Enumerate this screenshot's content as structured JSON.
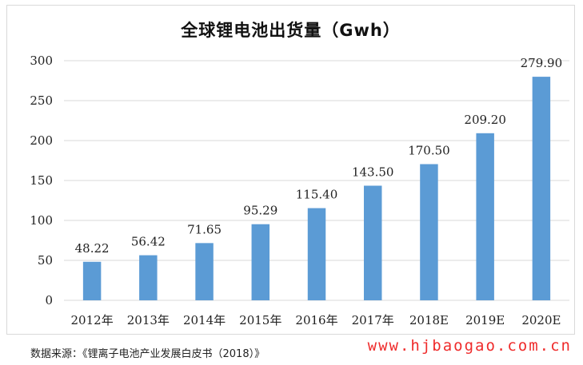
{
  "chart_data": {
    "type": "bar",
    "title": "全球锂电池出货量（Gwh）",
    "categories": [
      "2012年",
      "2013年",
      "2014年",
      "2015年",
      "2016年",
      "2017年",
      "2018E",
      "2019E",
      "2020E"
    ],
    "values": [
      48.22,
      56.42,
      71.65,
      95.29,
      115.4,
      143.5,
      170.5,
      209.2,
      279.9
    ],
    "data_labels": [
      "48.22",
      "56.42",
      "71.65",
      "95.29",
      "115.40",
      "143.50",
      "170.50",
      "209.20",
      "279.90"
    ],
    "ylim": [
      0,
      300
    ],
    "yticks": [
      0,
      50,
      100,
      150,
      200,
      250,
      300
    ],
    "grid": true,
    "legend": "none",
    "bar_color": "#5b9bd5"
  },
  "source_note": "数据来源：《锂离子电池产业发展白皮书（2018）》",
  "watermark": "www.hjbaogao.com.cn"
}
